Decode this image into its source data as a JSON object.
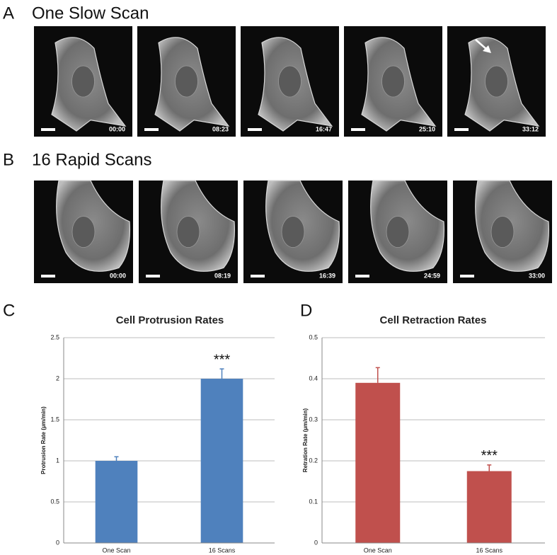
{
  "panels": [
    {
      "label": "A",
      "title": "One Slow Scan",
      "frames": [
        "00:00",
        "08:23",
        "16:47",
        "25:10",
        "33:12"
      ]
    },
    {
      "label": "B",
      "title": "16 Rapid Scans",
      "frames": [
        "00:00",
        "08:19",
        "16:39",
        "24:59",
        "33:00"
      ]
    }
  ],
  "chart_data": [
    {
      "type": "bar",
      "label": "C",
      "title": "Cell Protrusion Rates",
      "y_label": "Protrusion Rate (µm/min)",
      "categories": [
        "One Scan",
        "16 Scans"
      ],
      "values": [
        1.0,
        2.0
      ],
      "errors": [
        0.05,
        0.12
      ],
      "color": "#4f81bd",
      "ylim": [
        0,
        2.5
      ],
      "yticks": [
        0,
        0.5,
        1,
        1.5,
        2,
        2.5
      ],
      "grid": true,
      "annotation": "***"
    },
    {
      "type": "bar",
      "label": "D",
      "title": "Cell Retraction Rates",
      "y_label": "Retration Rate (µm/min)",
      "categories": [
        "One Scan",
        "16 Scans"
      ],
      "values": [
        0.39,
        0.175
      ],
      "errors": [
        0.037,
        0.015
      ],
      "color": "#c0504d",
      "ylim": [
        0,
        0.5
      ],
      "yticks": [
        0,
        0.1,
        0.2,
        0.3,
        0.4,
        0.5
      ],
      "grid": true,
      "annotation": "***"
    }
  ]
}
